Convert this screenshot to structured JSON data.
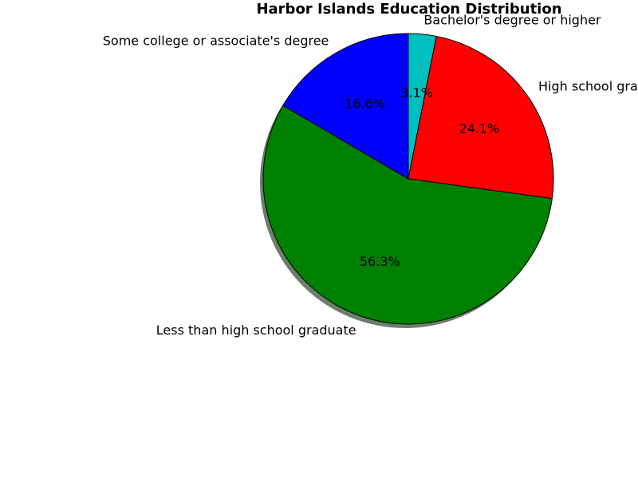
{
  "chart_data": {
    "type": "pie",
    "title": "Harbor Islands Education Distribution",
    "start_angle_deg": 90,
    "direction": "clockwise",
    "shadow": true,
    "categories": [
      "Bachelor's degree or higher",
      "High school graduate",
      "Less than high school graduate",
      "Some college or associate's degree"
    ],
    "values": [
      3.1,
      24.1,
      56.3,
      16.6
    ],
    "percent_labels": [
      "3.1%",
      "24.1%",
      "56.3%",
      "16.6%"
    ],
    "colors": [
      "#00bfbf",
      "#ff0000",
      "#008000",
      "#0000ff"
    ],
    "edge_color": "#000000",
    "shadow_color": "#6b7f6b"
  }
}
